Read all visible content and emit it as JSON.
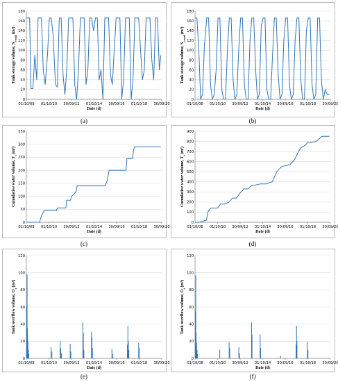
{
  "chart_data": [
    {
      "type": "line",
      "panel": "(a)",
      "xlabel": "Date (d)",
      "ylabel_text": "Tank storage volume, S",
      "ylabel_sub": "t-end",
      "ylabel_unit": "(m³)",
      "x_ticks": [
        "01/10/08",
        "01/10/10",
        "30/09/12",
        "01/10/14",
        "30/09/16",
        "01/10/18",
        "30/09/20"
      ],
      "ylim": [
        0,
        180
      ],
      "y_ticks": [
        0,
        20,
        40,
        60,
        80,
        100,
        120,
        140,
        160,
        180
      ],
      "grid": true,
      "color": "#2e75b6",
      "x": [
        "2008-10-01",
        "2008-12-01",
        "2009-01-15",
        "2009-03-01",
        "2009-05-01",
        "2009-07-01",
        "2009-09-01",
        "2009-10-15",
        "2009-12-01",
        "2010-02-01",
        "2010-04-01",
        "2010-06-01",
        "2010-08-15",
        "2010-10-15",
        "2010-12-15",
        "2011-02-15",
        "2011-05-01",
        "2011-07-01",
        "2011-09-01",
        "2011-11-01",
        "2012-01-01",
        "2012-03-01",
        "2012-05-01",
        "2012-07-01",
        "2012-09-15",
        "2012-11-15",
        "2013-01-15",
        "2013-03-15",
        "2013-05-15",
        "2013-07-15",
        "2013-09-15",
        "2013-11-15",
        "2014-01-15",
        "2014-03-15",
        "2014-05-15",
        "2014-07-15",
        "2014-09-15",
        "2014-11-15",
        "2015-01-15",
        "2015-03-15",
        "2015-05-15",
        "2015-07-15",
        "2015-09-15",
        "2015-11-15",
        "2016-01-15",
        "2016-03-15",
        "2016-05-15",
        "2016-07-15",
        "2016-09-15",
        "2016-11-15",
        "2017-01-15",
        "2017-03-15",
        "2017-05-15",
        "2017-07-15",
        "2017-09-15",
        "2017-11-15",
        "2018-01-15",
        "2018-03-15",
        "2018-05-15",
        "2018-07-15",
        "2018-09-15",
        "2018-11-15",
        "2019-01-15",
        "2019-03-15",
        "2019-05-15",
        "2019-07-15",
        "2019-09-15",
        "2019-11-15",
        "2020-01-15",
        "2020-03-15",
        "2020-05-15",
        "2020-07-15",
        "2020-09-01"
      ],
      "values": [
        166,
        166,
        166,
        22,
        22,
        90,
        40,
        166,
        166,
        166,
        60,
        30,
        90,
        166,
        166,
        130,
        30,
        25,
        166,
        166,
        50,
        10,
        60,
        166,
        166,
        166,
        30,
        0,
        60,
        166,
        166,
        166,
        30,
        60,
        166,
        166,
        140,
        166,
        166,
        40,
        60,
        0,
        166,
        166,
        166,
        50,
        30,
        100,
        166,
        166,
        166,
        0,
        40,
        166,
        166,
        166,
        0,
        40,
        166,
        166,
        166,
        100,
        40,
        60,
        166,
        166,
        166,
        80,
        40,
        166,
        166,
        60,
        90
      ]
    },
    {
      "type": "line",
      "panel": "(b)",
      "xlabel": "Date (d)",
      "ylabel_text": "Tank storage volume, S",
      "ylabel_sub": "t-end",
      "ylabel_unit": "(m³)",
      "x_ticks": [
        "01/10/08",
        "01/10/10",
        "30/09/12",
        "01/10/14",
        "30/09/16",
        "01/10/18",
        "30/09/20"
      ],
      "ylim": [
        0,
        180
      ],
      "y_ticks": [
        0,
        20,
        40,
        60,
        80,
        100,
        120,
        140,
        160,
        180
      ],
      "grid": true,
      "color": "#2e75b6",
      "x": [
        "2008-10-01",
        "2008-12-01",
        "2009-02-01",
        "2009-04-01",
        "2009-06-01",
        "2009-08-01",
        "2009-10-15",
        "2009-12-15",
        "2010-02-15",
        "2010-04-15",
        "2010-06-15",
        "2010-08-15",
        "2010-10-15",
        "2010-12-15",
        "2011-02-15",
        "2011-04-15",
        "2011-06-15",
        "2011-08-15",
        "2011-10-15",
        "2011-12-15",
        "2012-02-15",
        "2012-04-15",
        "2012-06-15",
        "2012-08-15",
        "2012-10-15",
        "2012-12-15",
        "2013-02-15",
        "2013-04-15",
        "2013-06-15",
        "2013-08-15",
        "2013-10-15",
        "2013-12-15",
        "2014-02-15",
        "2014-04-15",
        "2014-06-15",
        "2014-08-15",
        "2014-10-15",
        "2014-12-15",
        "2015-02-15",
        "2015-04-15",
        "2015-06-15",
        "2015-08-15",
        "2015-10-15",
        "2015-12-15",
        "2016-02-15",
        "2016-04-15",
        "2016-06-15",
        "2016-08-15",
        "2016-10-15",
        "2016-12-15",
        "2017-02-15",
        "2017-04-15",
        "2017-06-15",
        "2017-08-15",
        "2017-10-15",
        "2017-12-15",
        "2018-02-15",
        "2018-04-15",
        "2018-06-15",
        "2018-08-15",
        "2018-10-15",
        "2018-12-15",
        "2019-02-15",
        "2019-04-15",
        "2019-06-15",
        "2019-08-15",
        "2019-10-15",
        "2019-12-15",
        "2020-02-15",
        "2020-04-15",
        "2020-06-15",
        "2020-09-01"
      ],
      "values": [
        166,
        166,
        100,
        0,
        10,
        110,
        166,
        166,
        30,
        0,
        10,
        60,
        166,
        166,
        20,
        0,
        0,
        100,
        166,
        166,
        40,
        0,
        10,
        100,
        166,
        166,
        30,
        0,
        0,
        120,
        166,
        166,
        60,
        0,
        10,
        150,
        166,
        166,
        20,
        0,
        0,
        90,
        166,
        166,
        50,
        0,
        10,
        120,
        166,
        166,
        30,
        0,
        10,
        120,
        166,
        166,
        40,
        0,
        0,
        140,
        166,
        166,
        30,
        0,
        10,
        166,
        166,
        40,
        0,
        20,
        10,
        10
      ]
    },
    {
      "type": "line",
      "panel": "(c)",
      "xlabel": "Date (d)",
      "ylabel_text": "Cumulative water volume, T",
      "ylabel_sub": "t",
      "ylabel_unit": "(m³)",
      "x_ticks": [
        "01/10/08",
        "01/10/10",
        "30/09/12",
        "01/10/14",
        "30/09/16",
        "01/10/18",
        "30/09/20"
      ],
      "ylim": [
        0,
        350
      ],
      "y_ticks": [
        0,
        50,
        100,
        150,
        200,
        250,
        300,
        350
      ],
      "grid": true,
      "color": "#2e75b6",
      "x": [
        "2008-10-01",
        "2009-12-01",
        "2010-02-01",
        "2010-05-01",
        "2011-06-01",
        "2011-07-01",
        "2012-04-01",
        "2012-05-01",
        "2012-09-01",
        "2012-10-01",
        "2013-01-01",
        "2013-03-01",
        "2013-04-01",
        "2015-10-01",
        "2015-12-01",
        "2016-02-01",
        "2017-08-01",
        "2017-09-01",
        "2018-03-01",
        "2018-04-01",
        "2018-05-01",
        "2020-09-01"
      ],
      "values": [
        0,
        0,
        25,
        45,
        45,
        55,
        55,
        85,
        85,
        100,
        110,
        120,
        140,
        140,
        160,
        200,
        200,
        245,
        245,
        275,
        290,
        290
      ]
    },
    {
      "type": "line",
      "panel": "(d)",
      "xlabel": "Date (d)",
      "ylabel_text": "Cumulative water volume, T",
      "ylabel_sub": "t",
      "ylabel_unit": "(m³)",
      "x_ticks": [
        "01/10/08",
        "01/10/10",
        "30/09/12",
        "01/10/14",
        "30/09/16",
        "01/10/18",
        "30/09/20"
      ],
      "ylim": [
        0,
        900
      ],
      "y_ticks": [
        0,
        100,
        200,
        300,
        400,
        500,
        600,
        700,
        800,
        900
      ],
      "grid": true,
      "color": "#2e75b6",
      "x": [
        "2008-10-01",
        "2009-03-01",
        "2009-06-01",
        "2009-10-01",
        "2009-12-01",
        "2010-03-01",
        "2010-10-01",
        "2011-01-01",
        "2011-06-01",
        "2011-10-01",
        "2012-02-01",
        "2012-06-01",
        "2012-10-01",
        "2013-02-01",
        "2013-06-01",
        "2013-10-01",
        "2014-03-01",
        "2014-08-01",
        "2015-02-01",
        "2015-08-01",
        "2016-01-01",
        "2016-06-01",
        "2016-10-01",
        "2017-03-01",
        "2017-08-01",
        "2017-12-01",
        "2018-03-01",
        "2018-07-01",
        "2018-10-01",
        "2019-02-01",
        "2019-07-01",
        "2020-01-01",
        "2020-09-01"
      ],
      "values": [
        0,
        0,
        10,
        20,
        110,
        140,
        140,
        180,
        180,
        200,
        240,
        240,
        290,
        330,
        330,
        360,
        370,
        380,
        380,
        400,
        500,
        550,
        560,
        570,
        620,
        700,
        740,
        760,
        790,
        790,
        800,
        850,
        850
      ]
    },
    {
      "type": "bar",
      "panel": "(e)",
      "xlabel": "Date (d)",
      "ylabel_text": "Tank overflow volume, O",
      "ylabel_sub": "t",
      "ylabel_unit": "(m³)",
      "x_ticks": [
        "01/10/08",
        "01/10/10",
        "30/09/12",
        "01/10/14",
        "30/09/16",
        "01/10/18",
        "30/09/20"
      ],
      "ylim": [
        0,
        120
      ],
      "y_ticks": [
        0,
        20,
        40,
        60,
        80,
        100,
        120
      ],
      "grid": true,
      "color": "#2e75b6",
      "x": [
        "2008-10-10",
        "2008-10-25",
        "2008-11-05",
        "2008-11-20",
        "2008-12-05",
        "2008-12-20",
        "2010-12-10",
        "2011-01-05",
        "2011-10-01",
        "2011-10-20",
        "2011-11-10",
        "2012-08-20",
        "2012-09-10",
        "2013-10-05",
        "2013-10-20",
        "2013-11-05",
        "2014-07-10",
        "2014-07-25",
        "2014-08-10",
        "2016-05-01",
        "2016-06-01",
        "2017-09-15",
        "2017-10-01",
        "2017-10-15",
        "2017-11-01",
        "2018-09-15",
        "2018-10-05"
      ],
      "values": [
        60,
        98,
        35,
        20,
        10,
        5,
        13,
        8,
        20,
        12,
        6,
        17,
        8,
        42,
        30,
        10,
        31,
        25,
        12,
        11,
        5,
        16,
        38,
        20,
        10,
        18,
        12
      ]
    },
    {
      "type": "bar",
      "panel": "(f)",
      "xlabel": "Date (d)",
      "ylabel_text": "Tank overflow volume, O",
      "ylabel_sub": "t",
      "ylabel_unit": "(m³)",
      "x_ticks": [
        "01/10/08",
        "01/10/10",
        "30/09/12",
        "01/10/14",
        "30/09/16",
        "01/10/18",
        "30/09/20"
      ],
      "ylim": [
        0,
        120
      ],
      "y_ticks": [
        0,
        20,
        40,
        60,
        80,
        100,
        120
      ],
      "grid": true,
      "color": "#2e75b6",
      "x": [
        "2008-10-10",
        "2008-10-25",
        "2008-11-05",
        "2008-11-20",
        "2008-12-05",
        "2008-12-20",
        "2010-12-10",
        "2011-10-10",
        "2011-11-01",
        "2012-08-20",
        "2012-09-10",
        "2013-10-05",
        "2013-10-20",
        "2014-07-10",
        "2014-07-25",
        "2016-05-01",
        "2017-09-15",
        "2017-10-01",
        "2017-10-15",
        "2018-09-15",
        "2018-10-05"
      ],
      "values": [
        55,
        97,
        30,
        18,
        10,
        5,
        10,
        19,
        12,
        13,
        6,
        42,
        28,
        28,
        12,
        3,
        16,
        38,
        20,
        19,
        10
      ]
    }
  ],
  "captions": [
    "(a)",
    "(b)",
    "(c)",
    "(d)",
    "(e)",
    "(f)"
  ]
}
